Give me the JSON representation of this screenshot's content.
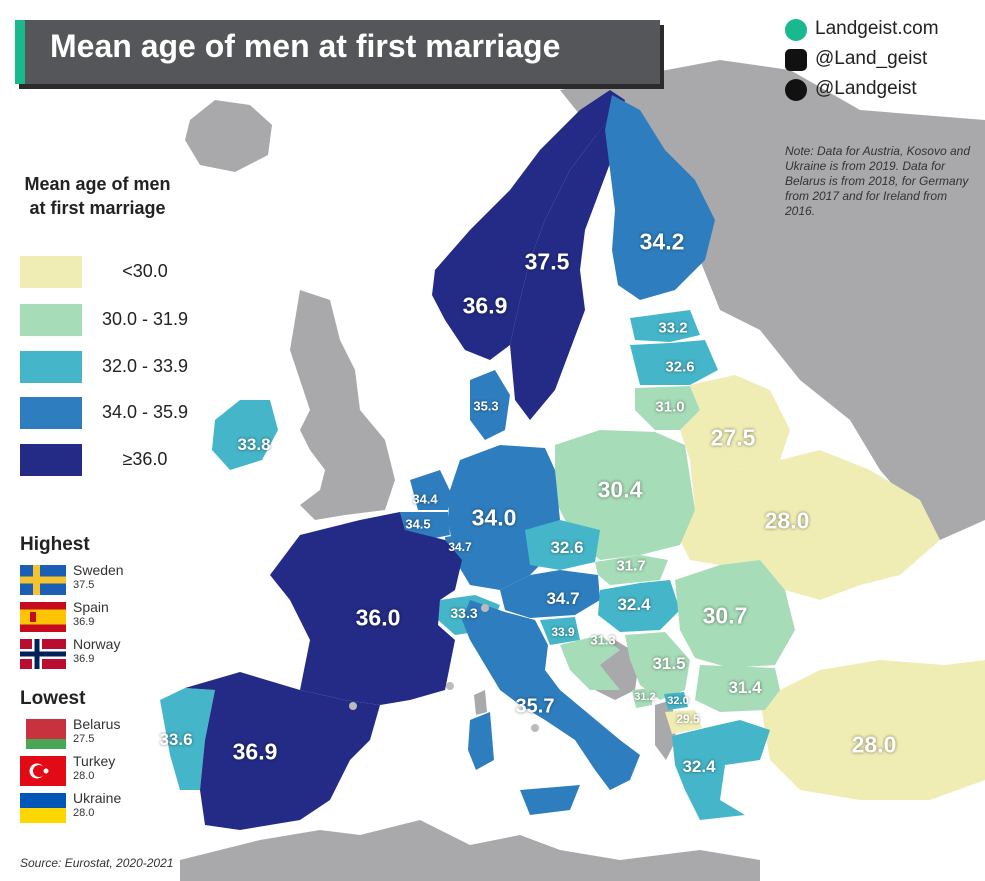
{
  "title": "Mean age of men at first marriage",
  "branding": {
    "site": "Landgeist.com",
    "instagram": "@Land_geist",
    "twitter": "@Landgeist"
  },
  "note": "Note: Data for Austria, Kosovo and Ukraine is from 2019. Data for Belarus is from 2018, for Germany from 2017 and for Ireland from 2016.",
  "legend": {
    "title": "Mean age of men at first marriage",
    "classes": [
      {
        "label": "<30.0",
        "color": "#f0edb4"
      },
      {
        "label": "30.0 - 31.9",
        "color": "#a6dcb7"
      },
      {
        "label": "32.0 - 33.9",
        "color": "#45b6c9"
      },
      {
        "label": "34.0 - 35.9",
        "color": "#2e7ebf"
      },
      {
        "label": "≥36.0",
        "color": "#232b86"
      }
    ]
  },
  "highest": {
    "title": "Highest",
    "items": [
      {
        "country": "Sweden",
        "value": "37.5",
        "flag": "sweden-flag"
      },
      {
        "country": "Spain",
        "value": "36.9",
        "flag": "spain-flag"
      },
      {
        "country": "Norway",
        "value": "36.9",
        "flag": "norway-flag"
      }
    ]
  },
  "lowest": {
    "title": "Lowest",
    "items": [
      {
        "country": "Belarus",
        "value": "27.5",
        "flag": "belarus-flag"
      },
      {
        "country": "Turkey",
        "value": "28.0",
        "flag": "turkey-flag"
      },
      {
        "country": "Ukraine",
        "value": "28.0",
        "flag": "ukraine-flag"
      }
    ]
  },
  "source": "Source: Eurostat, 2020-2021",
  "map_labels": [
    {
      "value": "37.5",
      "country": "Sweden"
    },
    {
      "value": "36.9",
      "country": "Norway"
    },
    {
      "value": "34.2",
      "country": "Finland"
    },
    {
      "value": "33.2",
      "country": "Estonia"
    },
    {
      "value": "32.6",
      "country": "Latvia"
    },
    {
      "value": "31.0",
      "country": "Lithuania"
    },
    {
      "value": "27.5",
      "country": "Belarus"
    },
    {
      "value": "35.3",
      "country": "Denmark"
    },
    {
      "value": "33.8",
      "country": "Ireland"
    },
    {
      "value": "30.4",
      "country": "Poland"
    },
    {
      "value": "28.0",
      "country": "Ukraine"
    },
    {
      "value": "34.4",
      "country": "Netherlands"
    },
    {
      "value": "34.5",
      "country": "Belgium"
    },
    {
      "value": "34.7",
      "country": "Luxembourg"
    },
    {
      "value": "34.0",
      "country": "Germany"
    },
    {
      "value": "32.6",
      "country": "Czechia"
    },
    {
      "value": "31.7",
      "country": "Slovakia"
    },
    {
      "value": "36.0",
      "country": "France"
    },
    {
      "value": "34.7",
      "country": "Austria"
    },
    {
      "value": "32.4",
      "country": "Hungary"
    },
    {
      "value": "33.3",
      "country": "Switzerland"
    },
    {
      "value": "33.9",
      "country": "Slovenia"
    },
    {
      "value": "31.3",
      "country": "Croatia"
    },
    {
      "value": "30.7",
      "country": "Romania"
    },
    {
      "value": "31.5",
      "country": "Serbia"
    },
    {
      "value": "31.4",
      "country": "Bulgaria"
    },
    {
      "value": "31.2",
      "country": "Montenegro"
    },
    {
      "value": "32.0",
      "country": "Kosovo"
    },
    {
      "value": "29.5",
      "country": "North Macedonia"
    },
    {
      "value": "35.7",
      "country": "Italy"
    },
    {
      "value": "33.6",
      "country": "Portugal"
    },
    {
      "value": "36.9",
      "country": "Spain"
    },
    {
      "value": "32.4",
      "country": "Greece"
    },
    {
      "value": "28.0",
      "country": "Turkey"
    }
  ]
}
